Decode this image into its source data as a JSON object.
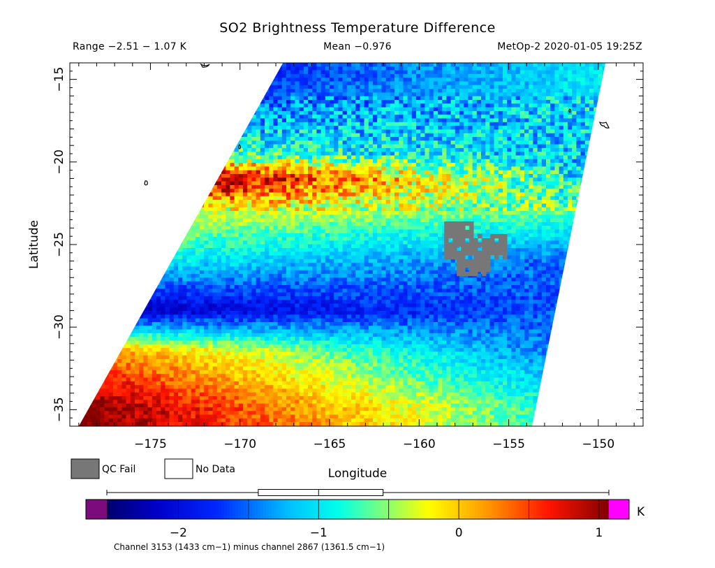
{
  "chart_data": {
    "type": "heatmap",
    "title": "SO2 Brightness Temperature Difference",
    "range_text": "Range −2.51 − 1.07 K",
    "mean_text": "Mean −0.976",
    "satellite_time_text": "MetOp-2 2020-01-05 19:25Z",
    "xlabel": "Longitude",
    "ylabel": "Latitude",
    "xlim": [
      -179.5,
      -147.5
    ],
    "ylim": [
      -36,
      -14
    ],
    "x_ticks": [
      -175,
      -170,
      -165,
      -160,
      -155,
      -150
    ],
    "x_tick_labels": [
      "−175",
      "−170",
      "−165",
      "−160",
      "−155",
      "−150"
    ],
    "y_ticks": [
      -15,
      -20,
      -25,
      -30,
      -35
    ],
    "y_tick_labels": [
      "−15",
      "−20",
      "−25",
      "−30",
      "−35"
    ],
    "grid": false,
    "swath_corners": [
      [
        -167.6,
        -14.0
      ],
      [
        -149.6,
        -14.0
      ],
      [
        -153.7,
        -36.0
      ],
      [
        -179.0,
        -36.0
      ]
    ],
    "qc_fail_region": {
      "lon": [
        -158.6,
        -155.1
      ],
      "lat": [
        -26.7,
        -23.6
      ]
    },
    "bands": [
      {
        "lat": -15.0,
        "base": -1.6,
        "trend": 0.5
      },
      {
        "lat": -19.5,
        "base": -0.9,
        "trend": -0.2
      },
      {
        "lat": -21.0,
        "base": 0.4,
        "trend": -1.2
      },
      {
        "lat": -23.0,
        "base": -0.4,
        "trend": -0.2
      },
      {
        "lat": -26.0,
        "base": -1.2,
        "trend": -0.3
      },
      {
        "lat": -29.0,
        "base": -1.9,
        "trend": 0.3
      },
      {
        "lat": -31.5,
        "base": -0.6,
        "trend": -0.8
      },
      {
        "lat": -35.0,
        "base": 0.1,
        "trend": -0.9
      }
    ],
    "colorbar": {
      "min": -2.51,
      "max": 1.07,
      "ticks": [
        -2,
        -1,
        0,
        1
      ],
      "tick_labels": [
        "−2",
        "−1",
        "0",
        "1"
      ],
      "unit": "K",
      "boxplot": {
        "whisker_low": -2.51,
        "q1": -1.43,
        "median": -1.0,
        "q3": -0.54,
        "whisker_high": 1.07
      },
      "under_color": "#7c0c7c",
      "over_color": "#ff00ff"
    },
    "legend": [
      {
        "label": "QC Fail",
        "color": "#777777"
      },
      {
        "label": "No Data",
        "color": "#ffffff"
      }
    ],
    "footnote": "Channel 3153 (1433 cm−1) minus channel 2867 (1361.5 cm−1)"
  }
}
